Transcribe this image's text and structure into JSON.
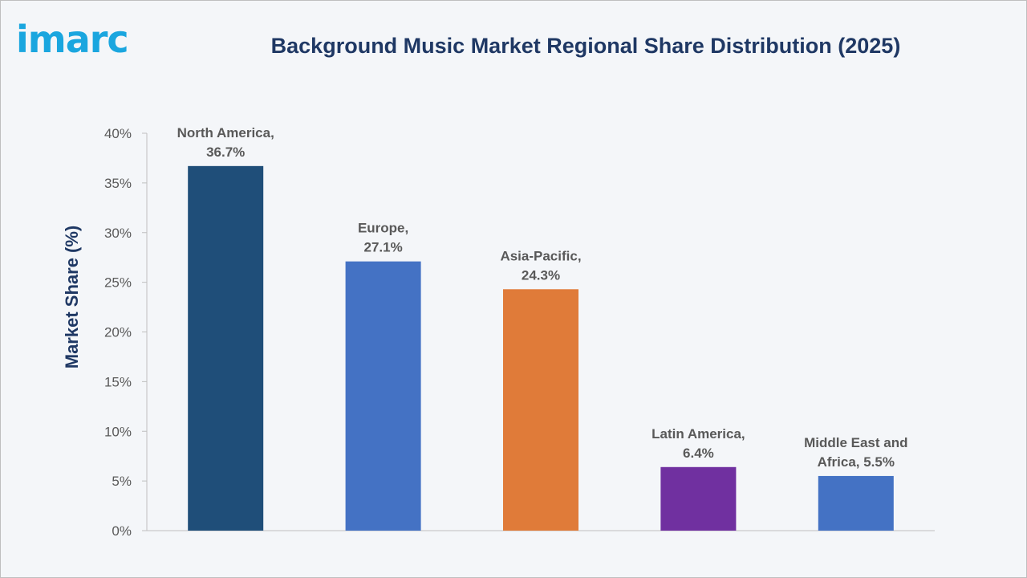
{
  "brand": {
    "logo_text": "imarc",
    "logo_color": "#1aa6df"
  },
  "chart_data": {
    "type": "bar",
    "title": "Background Music Market Regional Share Distribution (2025)",
    "ylabel": "Market Share (%)",
    "xlabel": "",
    "ylim": [
      0,
      40
    ],
    "yticks": [
      0,
      5,
      10,
      15,
      20,
      25,
      30,
      35,
      40
    ],
    "ytick_labels": [
      "0%",
      "5%",
      "10%",
      "15%",
      "20%",
      "25%",
      "30%",
      "35%",
      "40%"
    ],
    "grid": false,
    "categories": [
      "North America",
      "Europe",
      "Asia-Pacific",
      "Latin America",
      "Middle East and Africa"
    ],
    "values": [
      36.7,
      27.1,
      24.3,
      6.4,
      5.5
    ],
    "labels": [
      [
        "North America,",
        "36.7%"
      ],
      [
        "Europe,",
        "27.1%"
      ],
      [
        "Asia-Pacific,",
        "24.3%"
      ],
      [
        "Latin America,",
        "6.4%"
      ],
      [
        "Middle East and",
        "Africa, 5.5%"
      ]
    ],
    "colors": [
      "#1f4e79",
      "#4472c4",
      "#e07b39",
      "#7030a0",
      "#4472c4"
    ]
  }
}
